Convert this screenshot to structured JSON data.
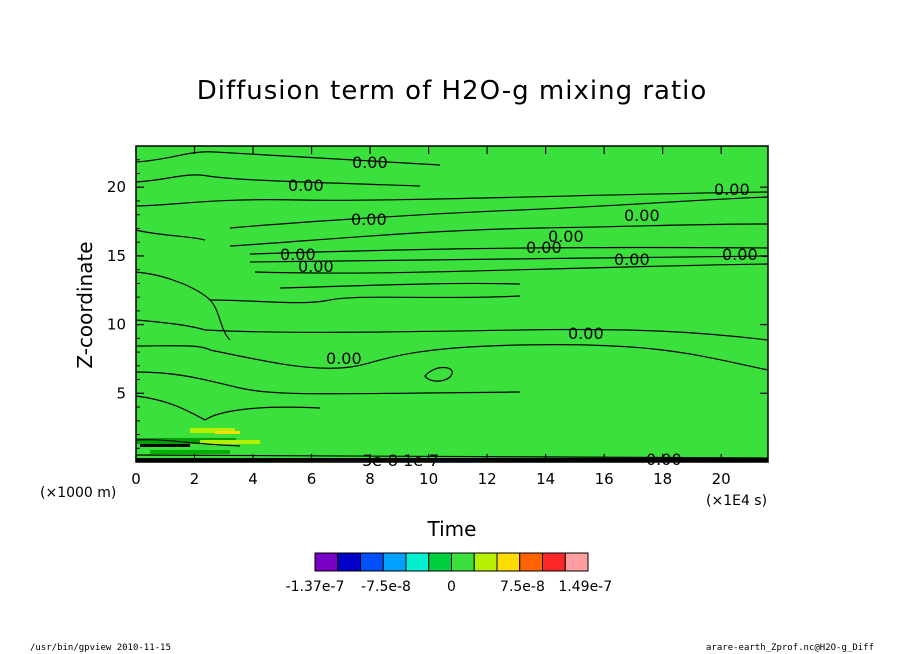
{
  "chart_data": {
    "type": "heatmap",
    "title": "Diffusion term of H2O-g mixing ratio",
    "xlabel": "Time",
    "ylabel": "Z-coordinate",
    "x_unit": "(×1E4 s)",
    "y_unit": "(×1000 m)",
    "xlim": [
      0,
      21.6
    ],
    "ylim": [
      0,
      23
    ],
    "x_ticks": [
      "0",
      "2",
      "4",
      "6",
      "8",
      "10",
      "12",
      "14",
      "16",
      "18",
      "20"
    ],
    "y_ticks": [
      "5",
      "10",
      "15",
      "20"
    ],
    "dominant_value": 0,
    "contour_labels": [
      "0.00",
      "0.00",
      "0.00",
      "0.00",
      "0.00",
      "0.00",
      "0.00",
      "0.00",
      "0.00",
      "0.00",
      "0.00",
      "0.00",
      "0.00",
      "0.00"
    ],
    "bottom_annotation": "3e-8 1e-7",
    "colorbar": {
      "colors": [
        "#7a00c8",
        "#0000c8",
        "#0050ff",
        "#00a0ff",
        "#00f0d0",
        "#00d040",
        "#3ce03c",
        "#b4f000",
        "#ffdc00",
        "#ff6400",
        "#ff2828",
        "#ff9ea0"
      ],
      "tick_labels": [
        "-1.37e-7",
        "-7.5e-8",
        "0",
        "7.5e-8",
        "1.49e-7"
      ]
    }
  },
  "footer": {
    "left": "/usr/bin/gpview   2010-11-15",
    "right": "arare-earth_Zprof.nc@H2O-g_Diff"
  }
}
